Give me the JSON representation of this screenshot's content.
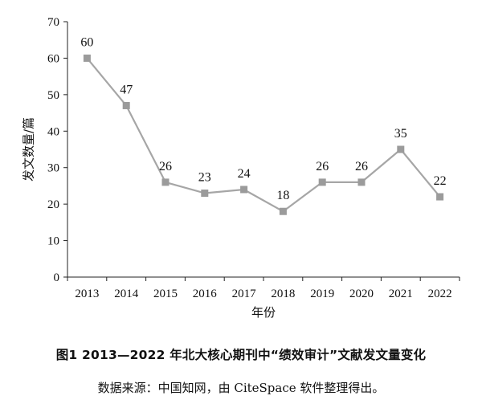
{
  "chart_data": {
    "type": "line",
    "title": "图1   2013—2022 年北大核心期刊中“绩效审计”文献发文量变化",
    "source": "数据来源：中国知网，由 CiteSpace 软件整理得出。",
    "xlabel": "年份",
    "ylabel": "发文数量/篇",
    "categories": [
      "2013",
      "2014",
      "2015",
      "2016",
      "2017",
      "2018",
      "2019",
      "2020",
      "2021",
      "2022"
    ],
    "series": [
      {
        "values": [
          60,
          47,
          26,
          23,
          24,
          18,
          26,
          26,
          35,
          22
        ]
      }
    ],
    "ylim": [
      0,
      70
    ],
    "yticks": [
      0,
      10,
      20,
      30,
      40,
      50,
      60,
      70
    ],
    "grid": false,
    "legend": "none",
    "colors": {
      "line": "#a6a6a6",
      "marker": "#9b9b9b",
      "axis": "#222222"
    }
  }
}
